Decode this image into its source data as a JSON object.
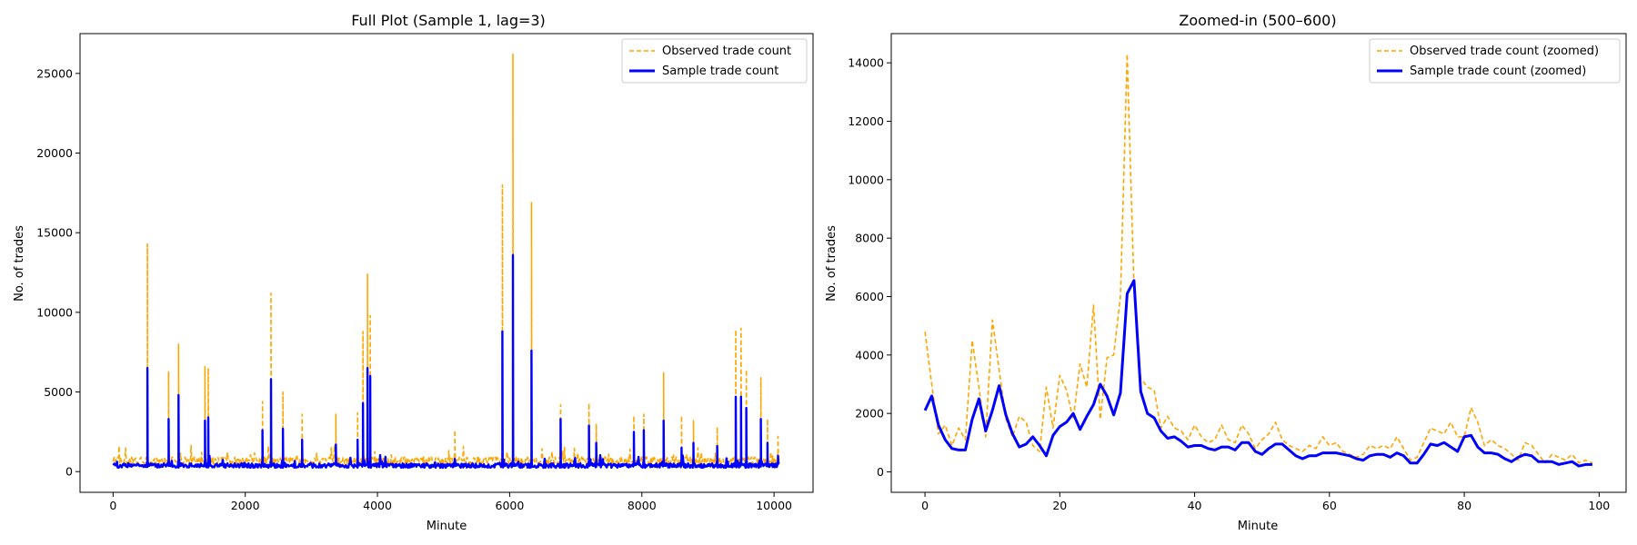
{
  "colors": {
    "observed": "#FFA500",
    "sample": "#0000FF"
  },
  "chart_data": [
    {
      "type": "line",
      "title": "Full Plot (Sample 1, lag=3)",
      "xlabel": "Minute",
      "ylabel": "No. of trades",
      "xlim": [
        -500,
        10590
      ],
      "ylim": [
        -1300,
        27500
      ],
      "xticks": [
        0,
        2000,
        4000,
        6000,
        8000,
        10000
      ],
      "yticks": [
        0,
        5000,
        10000,
        15000,
        20000,
        25000
      ],
      "legend_position": "upper right",
      "series": [
        {
          "name": "Observed trade count",
          "style": "dashed",
          "baseline": 650,
          "noise": 450,
          "spikes": [
            [
              520,
              14300
            ],
            [
              840,
              6300
            ],
            [
              990,
              8000
            ],
            [
              1390,
              6600
            ],
            [
              1440,
              6500
            ],
            [
              2260,
              4400
            ],
            [
              2390,
              11200
            ],
            [
              2570,
              5000
            ],
            [
              2860,
              3600
            ],
            [
              3370,
              3600
            ],
            [
              3700,
              3700
            ],
            [
              3780,
              8800
            ],
            [
              3850,
              12400
            ],
            [
              3890,
              9800
            ],
            [
              5170,
              2600
            ],
            [
              5890,
              18000
            ],
            [
              6050,
              26200
            ],
            [
              6330,
              16900
            ],
            [
              6770,
              4200
            ],
            [
              7200,
              4300
            ],
            [
              7310,
              3000
            ],
            [
              7880,
              3500
            ],
            [
              8030,
              3600
            ],
            [
              8330,
              6200
            ],
            [
              8600,
              3500
            ],
            [
              8780,
              3200
            ],
            [
              9140,
              2800
            ],
            [
              9420,
              8900
            ],
            [
              9500,
              9000
            ],
            [
              9580,
              6400
            ],
            [
              9800,
              5900
            ],
            [
              9900,
              3300
            ],
            [
              10060,
              2200
            ]
          ]
        },
        {
          "name": "Sample trade count",
          "style": "solid",
          "baseline": 350,
          "noise": 280,
          "spikes": [
            [
              520,
              6500
            ],
            [
              840,
              3300
            ],
            [
              990,
              4800
            ],
            [
              1390,
              3200
            ],
            [
              1440,
              3400
            ],
            [
              2260,
              2600
            ],
            [
              2390,
              5800
            ],
            [
              2570,
              2700
            ],
            [
              2860,
              2000
            ],
            [
              3370,
              1700
            ],
            [
              3700,
              2000
            ],
            [
              3780,
              4300
            ],
            [
              3850,
              6500
            ],
            [
              3890,
              6000
            ],
            [
              5170,
              800
            ],
            [
              5890,
              8800
            ],
            [
              6050,
              13600
            ],
            [
              6330,
              7600
            ],
            [
              6770,
              3300
            ],
            [
              7200,
              2900
            ],
            [
              7310,
              1800
            ],
            [
              7880,
              2500
            ],
            [
              8030,
              2600
            ],
            [
              8330,
              3200
            ],
            [
              8600,
              1500
            ],
            [
              8780,
              1800
            ],
            [
              9140,
              1600
            ],
            [
              9420,
              4700
            ],
            [
              9500,
              4700
            ],
            [
              9580,
              4000
            ],
            [
              9800,
              3300
            ],
            [
              9900,
              1800
            ],
            [
              10060,
              1000
            ]
          ]
        }
      ]
    },
    {
      "type": "line",
      "title": "Zoomed-in (500–600)",
      "xlabel": "Minute",
      "ylabel": "No. of trades",
      "xlim": [
        -5,
        104
      ],
      "ylim": [
        -700,
        15000
      ],
      "xticks": [
        0,
        20,
        40,
        60,
        80,
        100
      ],
      "yticks": [
        0,
        2000,
        4000,
        6000,
        8000,
        10000,
        12000,
        14000
      ],
      "legend_position": "upper right",
      "series": [
        {
          "name": "Observed trade count (zoomed)",
          "style": "dashed",
          "x": [
            0,
            1,
            2,
            3,
            4,
            5,
            6,
            7,
            8,
            9,
            10,
            11,
            12,
            13,
            14,
            15,
            16,
            17,
            18,
            19,
            20,
            21,
            22,
            23,
            24,
            25,
            26,
            27,
            28,
            29,
            30,
            31,
            32,
            33,
            34,
            35,
            36,
            37,
            38,
            39,
            40,
            41,
            42,
            43,
            44,
            45,
            46,
            47,
            48,
            49,
            50,
            51,
            52,
            53,
            54,
            55,
            56,
            57,
            58,
            59,
            60,
            61,
            62,
            63,
            64,
            65,
            66,
            67,
            68,
            69,
            70,
            71,
            72,
            73,
            74,
            75,
            76,
            77,
            78,
            79,
            80,
            81,
            82,
            83,
            84,
            85,
            86,
            87,
            88,
            89,
            90,
            91,
            92,
            93,
            94,
            95,
            96,
            97,
            98,
            99
          ],
          "values": [
            4800,
            3000,
            1300,
            1600,
            900,
            1500,
            1100,
            4500,
            2900,
            1200,
            5200,
            3500,
            1800,
            1200,
            1900,
            1700,
            900,
            700,
            2900,
            1500,
            3300,
            2800,
            1800,
            3700,
            2900,
            5700,
            1800,
            3900,
            4000,
            6000,
            14300,
            6300,
            3200,
            2900,
            2800,
            1500,
            1900,
            1500,
            1400,
            1100,
            1600,
            1200,
            1000,
            1100,
            1600,
            1100,
            1000,
            1600,
            1300,
            800,
            1100,
            1300,
            1700,
            1100,
            900,
            800,
            700,
            900,
            800,
            1200,
            900,
            1000,
            700,
            600,
            500,
            600,
            900,
            800,
            900,
            800,
            1200,
            800,
            400,
            500,
            1000,
            1500,
            1400,
            1300,
            1700,
            1200,
            1200,
            2200,
            1700,
            900,
            1100,
            900,
            800,
            600,
            400,
            1000,
            900,
            600,
            300,
            600,
            500,
            400,
            600,
            300,
            400,
            300
          ]
        },
        {
          "name": "Sample trade count (zoomed)",
          "style": "solid",
          "x": [
            0,
            1,
            2,
            3,
            4,
            5,
            6,
            7,
            8,
            9,
            10,
            11,
            12,
            13,
            14,
            15,
            16,
            17,
            18,
            19,
            20,
            21,
            22,
            23,
            24,
            25,
            26,
            27,
            28,
            29,
            30,
            31,
            32,
            33,
            34,
            35,
            36,
            37,
            38,
            39,
            40,
            41,
            42,
            43,
            44,
            45,
            46,
            47,
            48,
            49,
            50,
            51,
            52,
            53,
            54,
            55,
            56,
            57,
            58,
            59,
            60,
            61,
            62,
            63,
            64,
            65,
            66,
            67,
            68,
            69,
            70,
            71,
            72,
            73,
            74,
            75,
            76,
            77,
            78,
            79,
            80,
            81,
            82,
            83,
            84,
            85,
            86,
            87,
            88,
            89,
            90,
            91,
            92,
            93,
            94,
            95,
            96,
            97,
            98,
            99
          ],
          "values": [
            2100,
            2600,
            1600,
            1100,
            800,
            750,
            750,
            1800,
            2500,
            1400,
            2100,
            2950,
            1950,
            1300,
            850,
            950,
            1200,
            900,
            550,
            1250,
            1550,
            1700,
            2000,
            1450,
            1900,
            2300,
            3000,
            2600,
            1950,
            2700,
            6100,
            6550,
            2750,
            2000,
            1850,
            1400,
            1150,
            1200,
            1050,
            850,
            900,
            900,
            800,
            750,
            850,
            850,
            750,
            1000,
            1000,
            700,
            600,
            800,
            950,
            950,
            750,
            550,
            450,
            550,
            550,
            650,
            650,
            650,
            600,
            550,
            450,
            400,
            550,
            600,
            600,
            500,
            650,
            550,
            300,
            300,
            600,
            950,
            900,
            1000,
            850,
            700,
            1200,
            1250,
            850,
            650,
            650,
            600,
            450,
            350,
            500,
            600,
            550,
            350,
            350,
            350,
            250,
            300,
            350,
            200,
            250,
            250
          ]
        }
      ]
    }
  ]
}
